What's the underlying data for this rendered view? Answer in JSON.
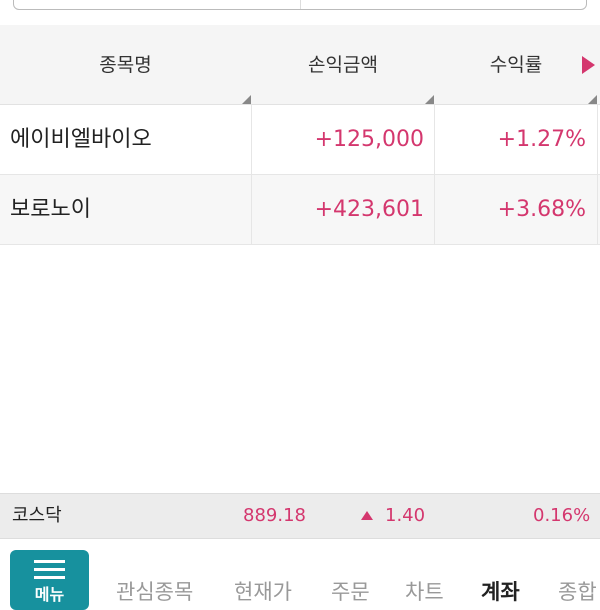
{
  "table": {
    "headers": [
      "종목명",
      "손익금액",
      "수익률"
    ],
    "rows": [
      {
        "name": "에이비엘바이오",
        "amount": "+125,000",
        "rate": "+1.27%"
      },
      {
        "name": "보로노이",
        "amount": "+423,601",
        "rate": "+3.68%"
      }
    ]
  },
  "ticker": {
    "name": "코스닥",
    "value": "889.18",
    "change": "1.40",
    "change_icon": "triangle-up",
    "rate": "0.16%"
  },
  "nav": {
    "menu_label": "메뉴",
    "items": [
      "관심종목",
      "현재가",
      "주문",
      "차트",
      "계좌",
      "종합"
    ],
    "active": "계좌"
  },
  "colors": {
    "up": "#d4376e",
    "accent": "#17919e"
  }
}
